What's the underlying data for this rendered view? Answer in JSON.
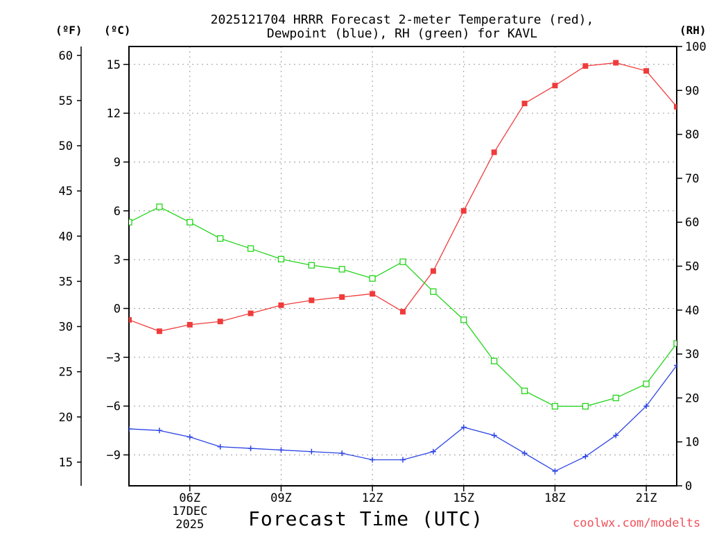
{
  "chart_data": {
    "type": "line",
    "title_line1": "2025121704 HRRR Forecast 2-meter Temperature (red),",
    "title_line2": "Dewpoint (blue), RH (green) for KAVL",
    "units": {
      "fahrenheit": "(ºF)",
      "celsius": "(ºC)",
      "rh": "(RH)"
    },
    "xlabel": "Forecast Time (UTC)",
    "credit": "coolwx.com/modelts",
    "x_hours": [
      4,
      5,
      6,
      7,
      8,
      9,
      10,
      11,
      12,
      13,
      14,
      15,
      16,
      17,
      18,
      19,
      20,
      21,
      22
    ],
    "xlim": [
      4,
      22
    ],
    "x_ticks": [
      {
        "hour": 6,
        "label": "06Z",
        "sub1": "17DEC",
        "sub2": "2025"
      },
      {
        "hour": 9,
        "label": "09Z"
      },
      {
        "hour": 12,
        "label": "12Z"
      },
      {
        "hour": 15,
        "label": "15Z"
      },
      {
        "hour": 18,
        "label": "18Z"
      },
      {
        "hour": 21,
        "label": "21Z"
      }
    ],
    "celsius_axis": {
      "min": -10.9,
      "max": 16.1,
      "ticks": [
        15,
        12,
        9,
        6,
        3,
        0,
        -3,
        -6,
        -9
      ]
    },
    "fahrenheit_axis": {
      "ticks": [
        60,
        55,
        50,
        45,
        40,
        35,
        30,
        25,
        20,
        15
      ]
    },
    "rh_axis": {
      "min": 0,
      "max": 100,
      "ticks": [
        100,
        90,
        80,
        70,
        60,
        50,
        40,
        30,
        20,
        10,
        0
      ]
    },
    "series": [
      {
        "name": "Temperature",
        "axis": "celsius",
        "color": "#ef3b3b",
        "marker": "filled-square",
        "values": [
          -0.7,
          -1.4,
          -1.0,
          -0.8,
          -0.3,
          0.2,
          0.5,
          0.7,
          0.9,
          -0.2,
          2.3,
          6.0,
          9.6,
          12.6,
          13.7,
          14.9,
          15.1,
          14.6,
          12.4
        ]
      },
      {
        "name": "Dewpoint",
        "axis": "celsius",
        "color": "#2c44e4",
        "marker": "plus",
        "values": [
          -7.4,
          -7.5,
          -7.9,
          -8.5,
          -8.6,
          -8.7,
          -8.8,
          -8.9,
          -9.3,
          -9.3,
          -8.8,
          -7.3,
          -7.8,
          -8.9,
          -10.0,
          -9.1,
          -7.8,
          -6.0,
          -3.5
        ]
      },
      {
        "name": "Relative Humidity",
        "axis": "rh",
        "color": "#22d51a",
        "marker": "open-square",
        "values": [
          60,
          63.5,
          60,
          56.3,
          54,
          51.6,
          50.2,
          49.3,
          47.2,
          51,
          44.2,
          37.8,
          28.4,
          21.6,
          18.1,
          18.1,
          20,
          23.2,
          32.4
        ]
      }
    ]
  }
}
